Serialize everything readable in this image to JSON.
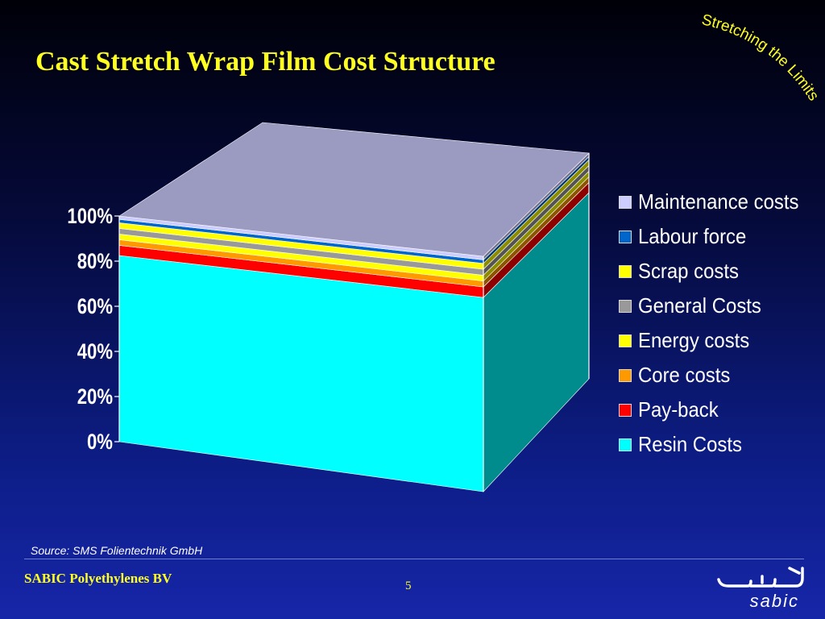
{
  "slide": {
    "title": "Cast Stretch Wrap Film Cost Structure",
    "tagline": "Stretching the Limits",
    "source": "Source: SMS Folientechnik GmbH",
    "company": "SABIC Polyethylenes BV",
    "page_number": "5",
    "logo_wordmark": "sabic"
  },
  "chart_data": {
    "type": "bar",
    "stacked": true,
    "percent": true,
    "three_d": true,
    "categories": [
      ""
    ],
    "ylim": [
      0,
      100
    ],
    "y_ticks": [
      "0%",
      "20%",
      "40%",
      "60%",
      "80%",
      "100%"
    ],
    "legend_position": "right",
    "series": [
      {
        "name": "Resin Costs",
        "values": [
          82.5
        ],
        "color": "#00ffff"
      },
      {
        "name": "Pay-back",
        "values": [
          4.5
        ],
        "color": "#ff0000"
      },
      {
        "name": "Core costs",
        "values": [
          2.5
        ],
        "color": "#ff9900"
      },
      {
        "name": "Energy costs",
        "values": [
          2.5
        ],
        "color": "#ffff00"
      },
      {
        "name": "General Costs",
        "values": [
          2.5
        ],
        "color": "#999999"
      },
      {
        "name": "Scrap costs",
        "values": [
          2.5
        ],
        "color": "#ffff00"
      },
      {
        "name": "Labour force",
        "values": [
          1.5
        ],
        "color": "#0066cc"
      },
      {
        "name": "Maintenance costs",
        "values": [
          1.5
        ],
        "color": "#ccccff"
      }
    ]
  }
}
